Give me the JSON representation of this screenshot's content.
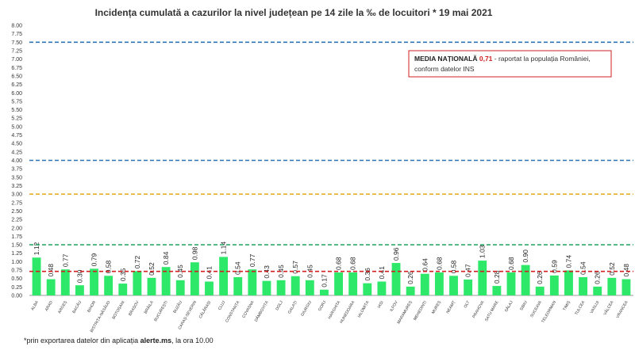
{
  "chart_data": {
    "type": "bar",
    "title": "Incidența cumulată a cazurilor la nivel județean pe 14 zile la ‰ de locuitori *  19 mai 2021",
    "categories": [
      "ALBA",
      "ARAD",
      "ARGEȘ",
      "BACĂU",
      "BIHOR",
      "BISTRIȚA-NĂSĂUD",
      "BOTOȘANI",
      "BRAȘOV",
      "BRĂILA",
      "BUCUREȘTI",
      "BUZĂU",
      "CARAȘ-SEVERIN",
      "CĂLĂRAȘI",
      "CLUJ",
      "CONSTANȚA",
      "COVASNA",
      "DÂMBOVIȚA",
      "DOLJ",
      "GALAȚI",
      "GIURGIU",
      "GORJ",
      "HARGHITA",
      "HUNEDOARA",
      "IALOMIȚA",
      "IAȘI",
      "ILFOV",
      "MARAMUREȘ",
      "MEHEDINȚI",
      "MUREȘ",
      "NEAMȚ",
      "OLT",
      "PRAHOVA",
      "SATU MARE",
      "SĂLAJ",
      "SIBIU",
      "SUCEAVA",
      "TELEORMAN",
      "TIMIȘ",
      "TULCEA",
      "VASLUI",
      "VÂLCEA",
      "VRANCEA"
    ],
    "values": [
      1.12,
      0.48,
      0.77,
      0.3,
      0.79,
      0.58,
      0.35,
      0.72,
      0.52,
      0.84,
      0.45,
      0.98,
      0.41,
      1.14,
      0.54,
      0.77,
      0.43,
      0.45,
      0.57,
      0.45,
      0.17,
      0.68,
      0.68,
      0.36,
      0.41,
      0.96,
      0.26,
      0.64,
      0.68,
      0.58,
      0.47,
      1.03,
      0.28,
      0.68,
      0.9,
      0.26,
      0.59,
      0.74,
      0.54,
      0.26,
      0.52,
      0.48
    ],
    "value_labels": [
      "1.12",
      "0.48",
      "0.77",
      "0.30",
      "0.79",
      "0.58",
      "0.35",
      "0.72",
      "0.52",
      "0.84",
      "0.45",
      "0.98",
      "0.41",
      "1.14",
      "0.54",
      "0.77",
      "0.43",
      "0.45",
      "0.57",
      "0.45",
      "0.17",
      "0.68",
      "0.68",
      "0.36",
      "0.41",
      "0.96",
      "0.26",
      "0.64",
      "0.68",
      "0.58",
      "0.47",
      "1.03",
      "0.28",
      "0.68",
      "0.90",
      "0.26",
      "0.59",
      "0.74",
      "0.54",
      "0.26",
      "0.52",
      "0.48"
    ],
    "color": "#2ee86a",
    "ylim": [
      0,
      8
    ],
    "yticks": [
      {
        "value": 0,
        "label": "0.00"
      },
      {
        "value": 0.25,
        "label": "0.25"
      },
      {
        "value": 0.5,
        "label": "0.50"
      },
      {
        "value": 0.75,
        "label": "0.75"
      },
      {
        "value": 1,
        "label": "1.00"
      },
      {
        "value": 1.25,
        "label": "1.25"
      },
      {
        "value": 1.5,
        "label": "1.50"
      },
      {
        "value": 1.75,
        "label": "1.75"
      },
      {
        "value": 2,
        "label": "2.00"
      },
      {
        "value": 2.25,
        "label": "2.25"
      },
      {
        "value": 2.5,
        "label": "2.50"
      },
      {
        "value": 2.75,
        "label": "2.75"
      },
      {
        "value": 3,
        "label": "3.00"
      },
      {
        "value": 3.25,
        "label": "3.25"
      },
      {
        "value": 3.5,
        "label": "3.50"
      },
      {
        "value": 3.75,
        "label": "3.75"
      },
      {
        "value": 4,
        "label": "4.00"
      },
      {
        "value": 4.25,
        "label": "4.25"
      },
      {
        "value": 4.5,
        "label": "4.50"
      },
      {
        "value": 4.75,
        "label": "4.75"
      },
      {
        "value": 5,
        "label": "5.00"
      },
      {
        "value": 5.25,
        "label": "5.25"
      },
      {
        "value": 5.5,
        "label": "5.50"
      },
      {
        "value": 5.75,
        "label": "5.75"
      },
      {
        "value": 6,
        "label": "6.00"
      },
      {
        "value": 6.25,
        "label": "6.25"
      },
      {
        "value": 6.5,
        "label": "6.50"
      },
      {
        "value": 6.75,
        "label": "6.75"
      },
      {
        "value": 7,
        "label": "7.00"
      },
      {
        "value": 7.25,
        "label": "7.25"
      },
      {
        "value": 7.5,
        "label": "7.50"
      },
      {
        "value": 7.75,
        "label": "7.75"
      },
      {
        "value": 8,
        "label": "8.00"
      }
    ],
    "grid": false,
    "reference_lines": [
      {
        "value": 7.5,
        "color": "#2e75b6"
      },
      {
        "value": 4,
        "color": "#2e75b6"
      },
      {
        "value": 3,
        "color": "#e6a817"
      },
      {
        "value": 1.5,
        "color": "#2eaa6a"
      },
      {
        "value": 0.71,
        "color": "#d02020"
      }
    ],
    "annotation": {
      "label": "MEDIA NAȚIONALĂ",
      "value_text": "0,71",
      "rest": " - raportat la populația României,",
      "line2": "conform datelor INS"
    },
    "footnote": {
      "prefix": "*prin exportarea datelor din aplicația ",
      "app": "alerte.ms",
      "suffix": ", la ora 10.00"
    }
  }
}
